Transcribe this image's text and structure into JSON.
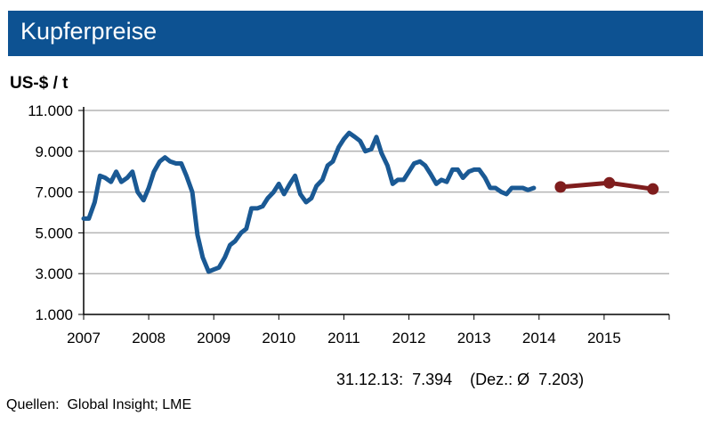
{
  "title": "Kupferpreise",
  "colors": {
    "title_bg": "#0d5292",
    "actual": "#1a5994",
    "forecast": "#7f1d1d",
    "grid": "#b4b4b4"
  },
  "footer_note": "31.12.13:  7.394    (Dez.: Ø  7.203)",
  "source": "Quellen:  Global Insight; LME",
  "chart_data": {
    "type": "line",
    "title": "Kupferpreise",
    "ylabel": "US-$ / t",
    "xlabel": "",
    "ylim": [
      1000,
      11000
    ],
    "xlim": [
      2007,
      2016
    ],
    "y_ticks": [
      1000,
      3000,
      5000,
      7000,
      9000,
      11000
    ],
    "y_tick_labels": [
      "1.000",
      "3.000",
      "5.000",
      "7.000",
      "9.000",
      "11.000"
    ],
    "x_ticks": [
      2007,
      2008,
      2009,
      2010,
      2011,
      2012,
      2013,
      2014,
      2015
    ],
    "x_tick_labels": [
      "2007",
      "2008",
      "2009",
      "2010",
      "2011",
      "2012",
      "2013",
      "2014",
      "2015"
    ],
    "grid": true,
    "legend": "none",
    "series": [
      {
        "style": "line",
        "color": "#1a5994",
        "x": [
          2007.0,
          2007.08,
          2007.17,
          2007.25,
          2007.33,
          2007.42,
          2007.5,
          2007.58,
          2007.67,
          2007.75,
          2007.83,
          2007.92,
          2008.0,
          2008.08,
          2008.17,
          2008.25,
          2008.33,
          2008.42,
          2008.5,
          2008.58,
          2008.67,
          2008.75,
          2008.83,
          2008.92,
          2009.0,
          2009.08,
          2009.17,
          2009.25,
          2009.33,
          2009.42,
          2009.5,
          2009.58,
          2009.67,
          2009.75,
          2009.83,
          2009.92,
          2010.0,
          2010.08,
          2010.17,
          2010.25,
          2010.33,
          2010.42,
          2010.5,
          2010.58,
          2010.67,
          2010.75,
          2010.83,
          2010.92,
          2011.0,
          2011.08,
          2011.17,
          2011.25,
          2011.33,
          2011.42,
          2011.5,
          2011.58,
          2011.67,
          2011.75,
          2011.83,
          2011.92,
          2012.0,
          2012.08,
          2012.17,
          2012.25,
          2012.33,
          2012.42,
          2012.5,
          2012.58,
          2012.67,
          2012.75,
          2012.83,
          2012.92,
          2013.0,
          2013.08,
          2013.17,
          2013.25,
          2013.33,
          2013.42,
          2013.5,
          2013.58,
          2013.67,
          2013.75,
          2013.83,
          2013.92
        ],
        "y": [
          5700,
          5700,
          6500,
          7800,
          7700,
          7500,
          8000,
          7500,
          7700,
          8000,
          7000,
          6600,
          7200,
          8000,
          8500,
          8700,
          8500,
          8400,
          8400,
          7800,
          7000,
          4900,
          3800,
          3100,
          3200,
          3300,
          3800,
          4400,
          4600,
          5000,
          5200,
          6200,
          6200,
          6300,
          6700,
          7000,
          7400,
          6900,
          7400,
          7800,
          6900,
          6500,
          6700,
          7300,
          7600,
          8300,
          8500,
          9200,
          9600,
          9900,
          9700,
          9500,
          9000,
          9100,
          9700,
          8900,
          8300,
          7400,
          7600,
          7600,
          8000,
          8400,
          8500,
          8300,
          7900,
          7400,
          7600,
          7500,
          8100,
          8100,
          7700,
          8000,
          8100,
          8100,
          7700,
          7200,
          7200,
          7000,
          6900,
          7200,
          7200,
          7200,
          7100,
          7200
        ]
      },
      {
        "style": "line-markers",
        "color": "#7f1d1d",
        "x": [
          2014.33,
          2015.08,
          2015.75
        ],
        "y": [
          7250,
          7450,
          7150
        ]
      }
    ]
  }
}
